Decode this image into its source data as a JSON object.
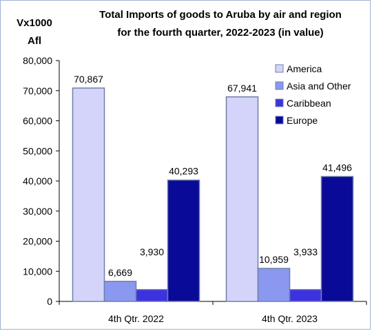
{
  "chart_data": {
    "type": "bar",
    "title_lines": [
      "Total Imports of goods to Aruba by air and region",
      "for the fourth quarter, 2022-2023 (in value)"
    ],
    "ylabel_lines": [
      "Vx1000",
      "Afl"
    ],
    "xlabel": "",
    "categories": [
      "4th Qtr. 2022",
      "4th Qtr. 2023"
    ],
    "ylim": [
      0,
      80000
    ],
    "yticks": [
      0,
      10000,
      20000,
      30000,
      40000,
      50000,
      60000,
      70000,
      80000
    ],
    "ytick_labels": [
      "0",
      "10,000",
      "20,000",
      "30,000",
      "40,000",
      "50,000",
      "60,000",
      "70,000",
      "80,000"
    ],
    "grid": false,
    "legend_position": "top-right",
    "series": [
      {
        "name": "America",
        "color": "#d4d4fa",
        "values": [
          70867,
          67941
        ],
        "labels": [
          "70,867",
          "67,941"
        ]
      },
      {
        "name": "Asia and Other",
        "color": "#8b98f0",
        "values": [
          6669,
          10959
        ],
        "labels": [
          "6,669",
          "10,959"
        ]
      },
      {
        "name": "Caribbean",
        "color": "#3c32e0",
        "values": [
          3930,
          3933
        ],
        "labels": [
          "3,930",
          "3,933"
        ]
      },
      {
        "name": "Europe",
        "color": "#0a0a98",
        "values": [
          40293,
          41496
        ],
        "labels": [
          "40,293",
          "41,496"
        ]
      }
    ]
  }
}
